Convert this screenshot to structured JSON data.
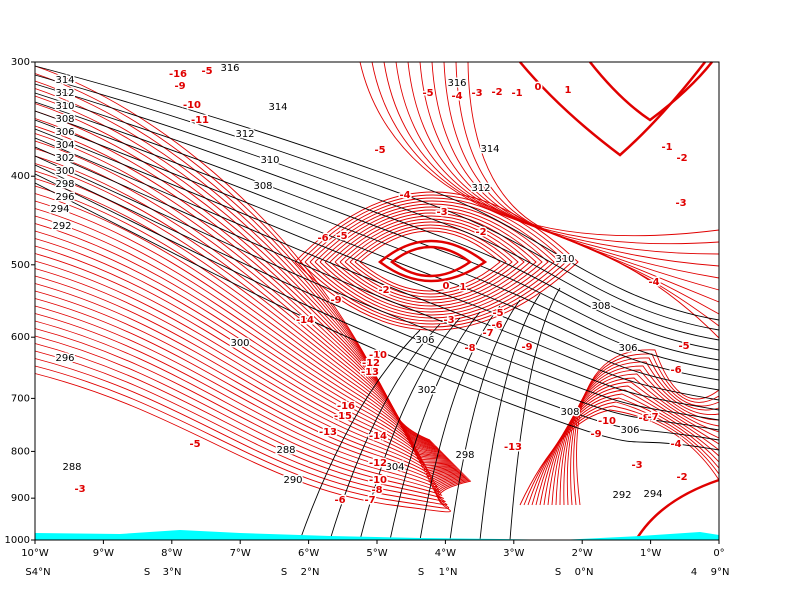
{
  "chart_data": {
    "type": "contour",
    "y_log": true,
    "y_inverted": true,
    "ylim": [
      300,
      1000
    ],
    "yticks": [
      300,
      400,
      500,
      600,
      700,
      800,
      900,
      1000
    ],
    "xlim": [
      -10,
      0
    ],
    "xticks": [
      {
        "value": -10,
        "label": "10°W"
      },
      {
        "value": -9,
        "label": "9°W"
      },
      {
        "value": -8,
        "label": "8°W"
      },
      {
        "value": -7,
        "label": "7°W"
      },
      {
        "value": -6,
        "label": "6°W"
      },
      {
        "value": -5,
        "label": "5°W"
      },
      {
        "value": -4,
        "label": "4°W"
      },
      {
        "value": -3,
        "label": "3°W"
      },
      {
        "value": -2,
        "label": "2°W"
      },
      {
        "value": -1,
        "label": "1°W"
      },
      {
        "value": 0,
        "label": "0°"
      }
    ],
    "x2_labels": [
      "S4°N",
      "S",
      "3°N",
      "S",
      "2°N",
      "S",
      "1°N",
      "S",
      "0°N",
      "4",
      "9°N"
    ],
    "theta_color": "#000000",
    "wind_color": "#e00000",
    "terrain_color": "#00ffff",
    "theta_labels": [
      316,
      316,
      314,
      312,
      310,
      308,
      314,
      312,
      310,
      308,
      306,
      308,
      306,
      298,
      290,
      288,
      288,
      296,
      292,
      294,
      306,
      302,
      304,
      300,
      314,
      312,
      310,
      308,
      306,
      304,
      302,
      300,
      298,
      296,
      294,
      292
    ],
    "wind_labels": [
      -16,
      -5,
      -9,
      -10,
      -11,
      -5,
      -4,
      -3,
      -2,
      -1,
      0,
      1,
      -5,
      -4,
      -3,
      -2,
      -1,
      -2,
      -3,
      -4,
      -5,
      -6,
      -5,
      -6,
      -9,
      -14,
      -2,
      0,
      1,
      -3,
      -5,
      -6,
      -7,
      -8,
      -9,
      -10,
      -12,
      -13,
      -16,
      -15,
      -13,
      -14,
      -12,
      -10,
      -8,
      -7,
      -6,
      -3,
      -5,
      -13,
      -9,
      -10,
      -8,
      -7,
      -4,
      -3,
      -2
    ]
  }
}
